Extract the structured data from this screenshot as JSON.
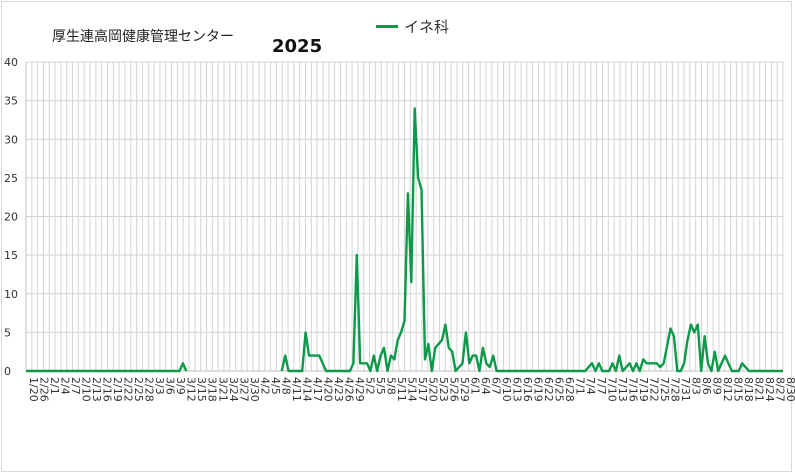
{
  "chart_data": {
    "type": "line",
    "subtitle": "厚生連高岡健康管理センター",
    "title": "2025",
    "legend": {
      "position": "top-center",
      "entries": [
        "イネ科"
      ]
    },
    "xlabel": "",
    "ylabel": "",
    "ylim": [
      0,
      40
    ],
    "yticks": [
      0,
      5,
      10,
      15,
      20,
      25,
      30,
      35,
      40
    ],
    "grid": true,
    "series": [
      {
        "name": "イネ科",
        "color": "#0c9a4a",
        "points": [
          [
            "1/20",
            0
          ],
          [
            "3/6",
            0
          ],
          [
            "3/7",
            1
          ],
          [
            "3/8",
            0
          ],
          [
            "4/5",
            0
          ],
          [
            "4/6",
            2
          ],
          [
            "4/7",
            0
          ],
          [
            "4/11",
            0
          ],
          [
            "4/12",
            5
          ],
          [
            "4/13",
            2
          ],
          [
            "4/16",
            2
          ],
          [
            "4/18",
            0
          ],
          [
            "4/25",
            0
          ],
          [
            "4/26",
            1
          ],
          [
            "4/27",
            15
          ],
          [
            "4/28",
            1
          ],
          [
            "4/30",
            1
          ],
          [
            "5/1",
            0
          ],
          [
            "5/2",
            2
          ],
          [
            "5/3",
            0
          ],
          [
            "5/4",
            2
          ],
          [
            "5/5",
            3
          ],
          [
            "5/6",
            0
          ],
          [
            "5/7",
            2
          ],
          [
            "5/8",
            1.5
          ],
          [
            "5/9",
            4
          ],
          [
            "5/10",
            5
          ],
          [
            "5/11",
            6.5
          ],
          [
            "5/12",
            23
          ],
          [
            "5/13",
            11.5
          ],
          [
            "5/14",
            34
          ],
          [
            "5/15",
            25
          ],
          [
            "5/16",
            23.5
          ],
          [
            "5/17",
            1.5
          ],
          [
            "5/18",
            3.5
          ],
          [
            "5/19",
            0
          ],
          [
            "5/20",
            3
          ],
          [
            "5/22",
            4
          ],
          [
            "5/23",
            6
          ],
          [
            "5/24",
            3
          ],
          [
            "5/25",
            2.5
          ],
          [
            "5/26",
            0
          ],
          [
            "5/28",
            1
          ],
          [
            "5/29",
            5
          ],
          [
            "5/30",
            1
          ],
          [
            "5/31",
            2
          ],
          [
            "6/1",
            2
          ],
          [
            "6/2",
            0
          ],
          [
            "6/3",
            3
          ],
          [
            "6/4",
            1
          ],
          [
            "6/5",
            0.5
          ],
          [
            "6/6",
            2
          ],
          [
            "6/7",
            0
          ],
          [
            "7/3",
            0
          ],
          [
            "7/4",
            0.5
          ],
          [
            "7/5",
            1
          ],
          [
            "7/6",
            0
          ],
          [
            "7/7",
            1
          ],
          [
            "7/8",
            0
          ],
          [
            "7/10",
            0
          ],
          [
            "7/11",
            1
          ],
          [
            "7/12",
            0
          ],
          [
            "7/13",
            2
          ],
          [
            "7/14",
            0
          ],
          [
            "7/16",
            1
          ],
          [
            "7/17",
            0
          ],
          [
            "7/18",
            1
          ],
          [
            "7/19",
            0
          ],
          [
            "7/20",
            1.5
          ],
          [
            "7/21",
            1
          ],
          [
            "7/23",
            1
          ],
          [
            "7/24",
            1
          ],
          [
            "7/25",
            0.5
          ],
          [
            "7/26",
            1
          ],
          [
            "7/28",
            5.5
          ],
          [
            "7/29",
            4.5
          ],
          [
            "7/30",
            0
          ],
          [
            "7/31",
            0
          ],
          [
            "8/1",
            1
          ],
          [
            "8/2",
            4
          ],
          [
            "8/3",
            6
          ],
          [
            "8/4",
            5
          ],
          [
            "8/5",
            6
          ],
          [
            "8/6",
            0
          ],
          [
            "8/7",
            4.5
          ],
          [
            "8/8",
            1
          ],
          [
            "8/9",
            0
          ],
          [
            "8/10",
            2.5
          ],
          [
            "8/11",
            0
          ],
          [
            "8/13",
            2
          ],
          [
            "8/14",
            1
          ],
          [
            "8/15",
            0
          ],
          [
            "8/17",
            0
          ],
          [
            "8/18",
            1
          ],
          [
            "8/19",
            0.5
          ],
          [
            "8/20",
            0
          ],
          [
            "8/30",
            0
          ]
        ],
        "gap_after": "3/8"
      }
    ],
    "x_tick_labels": [
      "1/20",
      "2/26",
      "2/1",
      "2/4",
      "2/7",
      "2/10",
      "2/13",
      "2/16",
      "2/19",
      "2/22",
      "2/25",
      "2/28",
      "3/3",
      "3/6",
      "3/9",
      "3/12",
      "3/15",
      "3/18",
      "3/21",
      "3/24",
      "3/27",
      "3/30",
      "4/2",
      "4/5",
      "4/8",
      "4/11",
      "4/14",
      "4/17",
      "4/20",
      "4/23",
      "4/26",
      "4/29",
      "5/2",
      "5/5",
      "5/8",
      "5/11",
      "5/14",
      "5/17",
      "5/20",
      "5/23",
      "5/26",
      "5/29",
      "6/1",
      "6/4",
      "6/7",
      "6/10",
      "6/13",
      "6/16",
      "6/19",
      "6/22",
      "6/25",
      "6/28",
      "7/1",
      "7/4",
      "7/7",
      "7/10",
      "7/13",
      "7/16",
      "7/19",
      "7/22",
      "7/25",
      "7/28",
      "7/31",
      "8/3",
      "8/6",
      "8/9",
      "8/12",
      "8/15",
      "8/18",
      "8/21",
      "8/24",
      "8/27",
      "8/30"
    ]
  }
}
